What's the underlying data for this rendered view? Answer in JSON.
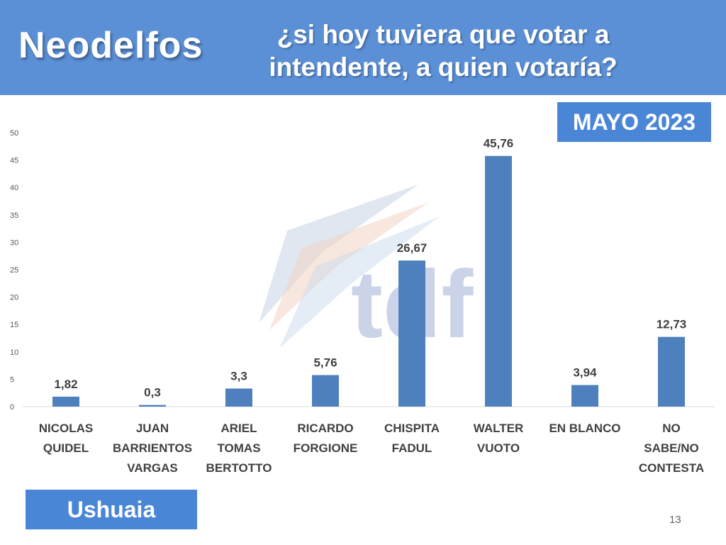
{
  "header": {
    "brand": "Neodelfos",
    "question_line1": "¿si hoy tuviera que votar a",
    "question_line2": "intendente, a quien votaría?"
  },
  "date_badge": "MAYO 2023",
  "city_badge": "Ushuaia",
  "page_number": "13",
  "watermark_text": "tdf",
  "colors": {
    "header_bg": "#5b8fd6",
    "badge_bg": "#4a86d6",
    "bar": "#4e80bd"
  },
  "chart_data": {
    "type": "bar",
    "title": "¿si hoy tuviera que votar a intendente, a quien votaría?",
    "categories": [
      [
        "NICOLAS",
        "QUIDEL"
      ],
      [
        "JUAN",
        "BARRIENTOS",
        "VARGAS"
      ],
      [
        "ARIEL",
        "TOMAS",
        "BERTOTTO"
      ],
      [
        "RICARDO",
        "FORGIONE"
      ],
      [
        "CHISPITA",
        "FADUL"
      ],
      [
        "WALTER",
        "VUOTO"
      ],
      [
        "EN BLANCO"
      ],
      [
        "NO",
        "SABE/NO",
        "CONTESTA"
      ]
    ],
    "values": [
      1.82,
      0.3,
      3.3,
      5.76,
      26.67,
      45.76,
      3.94,
      12.73
    ],
    "value_labels": [
      "1,82",
      "0,3",
      "3,3",
      "5,76",
      "26,67",
      "45,76",
      "3,94",
      "12,73"
    ],
    "ylim": [
      0,
      50
    ],
    "yticks": [
      0,
      5,
      10,
      15,
      20,
      25,
      30,
      35,
      40,
      45,
      50
    ],
    "grid": false,
    "legend": "none"
  }
}
